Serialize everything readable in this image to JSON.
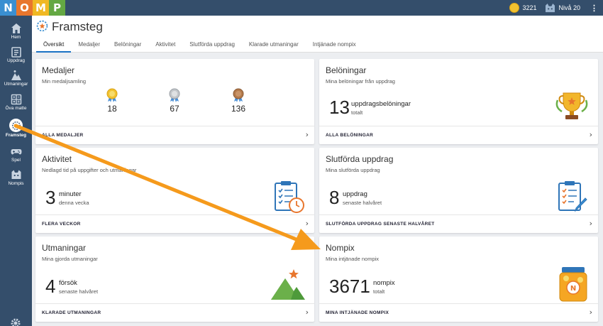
{
  "logo": [
    "N",
    "O",
    "M",
    "P"
  ],
  "colors": {
    "logo_n": "#3a8fd1",
    "logo_o": "#e8762d",
    "logo_m": "#f0b823",
    "logo_p": "#64a843",
    "sidebar": "#344e6b",
    "accent": "#1b73c4",
    "arrow": "#f59a1c"
  },
  "topbar": {
    "coins": "3221",
    "level": "Nivå 20"
  },
  "sidebar": {
    "items": [
      {
        "label": "Hem",
        "icon": "home-icon"
      },
      {
        "label": "Uppdrag",
        "icon": "assignment-icon"
      },
      {
        "label": "Utmaningar",
        "icon": "mountain-icon"
      },
      {
        "label": "Öva matte",
        "icon": "calculator-icon"
      },
      {
        "label": "Framsteg",
        "icon": "progress-icon"
      },
      {
        "label": "Spel",
        "icon": "gamepad-icon"
      },
      {
        "label": "Nompis",
        "icon": "cat-icon"
      }
    ]
  },
  "header": {
    "title": "Framsteg",
    "tabs": [
      "Översikt",
      "Medaljer",
      "Belöningar",
      "Aktivitet",
      "Slutförda uppdrag",
      "Klarade utmaningar",
      "Intjänade nompix"
    ]
  },
  "cards": {
    "medaljer": {
      "title": "Medaljer",
      "subtitle": "Min medaljsamling",
      "gold": "18",
      "silver": "67",
      "bronze": "136",
      "footer": "ALLA MEDALJER"
    },
    "beloningar": {
      "title": "Belöningar",
      "subtitle": "Mina belöningar från uppdrag",
      "value": "13",
      "label": "uppdragsbelöningar",
      "sub": "totalt",
      "footer": "ALLA BELÖNINGAR"
    },
    "aktivitet": {
      "title": "Aktivitet",
      "subtitle": "Nedlagd tid på uppgifter och utmaningar",
      "value": "3",
      "label": "minuter",
      "sub": "denna vecka",
      "footer": "FLERA VECKOR"
    },
    "slutforda": {
      "title": "Slutförda uppdrag",
      "subtitle": "Mina slutförda uppdrag",
      "value": "8",
      "label": "uppdrag",
      "sub": "senaste halvåret",
      "footer": "SLUTFÖRDA UPPDRAG SENASTE HALVÅRET"
    },
    "utmaningar": {
      "title": "Utmaningar",
      "subtitle": "Mina gjorda utmaningar",
      "value": "4",
      "label": "försök",
      "sub": "senaste halvåret",
      "footer": "KLARADE UTMANINGAR"
    },
    "nompix": {
      "title": "Nompix",
      "subtitle": "Mina intjänade nompix",
      "value": "3671",
      "label": "nompix",
      "sub": "totalt",
      "footer": "MINA INTJÄNADE NOMPIX",
      "jar_letter": "N"
    }
  }
}
